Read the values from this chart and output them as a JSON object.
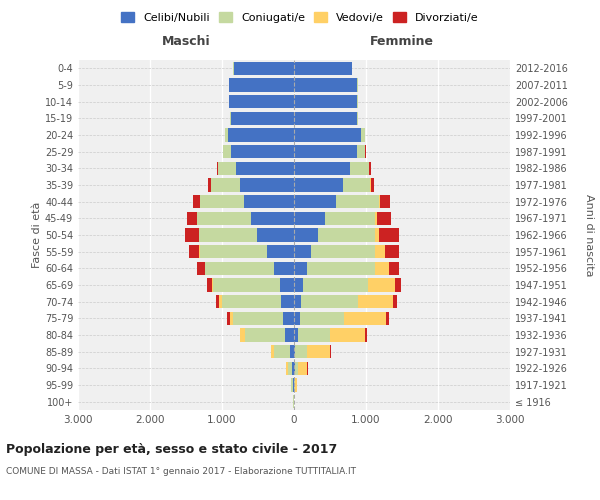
{
  "age_groups": [
    "100+",
    "95-99",
    "90-94",
    "85-89",
    "80-84",
    "75-79",
    "70-74",
    "65-69",
    "60-64",
    "55-59",
    "50-54",
    "45-49",
    "40-44",
    "35-39",
    "30-34",
    "25-29",
    "20-24",
    "15-19",
    "10-14",
    "5-9",
    "0-4"
  ],
  "birth_years": [
    "≤ 1916",
    "1917-1921",
    "1922-1926",
    "1927-1931",
    "1932-1936",
    "1937-1941",
    "1942-1946",
    "1947-1951",
    "1952-1956",
    "1957-1961",
    "1962-1966",
    "1967-1971",
    "1972-1976",
    "1977-1981",
    "1982-1986",
    "1987-1991",
    "1992-1996",
    "1997-2001",
    "2002-2006",
    "2007-2011",
    "2012-2016"
  ],
  "maschi": {
    "celibi": [
      5,
      20,
      30,
      60,
      130,
      150,
      180,
      200,
      280,
      370,
      520,
      600,
      700,
      750,
      800,
      870,
      920,
      870,
      900,
      900,
      840
    ],
    "coniugati": [
      2,
      15,
      60,
      220,
      550,
      700,
      820,
      920,
      950,
      940,
      800,
      750,
      600,
      400,
      250,
      110,
      40,
      15,
      8,
      4,
      3
    ],
    "vedovi": [
      0,
      3,
      15,
      45,
      70,
      45,
      35,
      18,
      8,
      4,
      2,
      1,
      1,
      0,
      0,
      0,
      0,
      0,
      0,
      0,
      0
    ],
    "divorziati": [
      0,
      0,
      0,
      0,
      0,
      40,
      55,
      65,
      110,
      140,
      190,
      140,
      95,
      45,
      25,
      4,
      2,
      0,
      0,
      0,
      0
    ]
  },
  "femmine": {
    "nubili": [
      3,
      5,
      10,
      20,
      55,
      80,
      100,
      130,
      180,
      230,
      330,
      430,
      580,
      680,
      780,
      880,
      930,
      880,
      880,
      880,
      800
    ],
    "coniugate": [
      1,
      12,
      45,
      160,
      450,
      620,
      790,
      900,
      950,
      900,
      800,
      700,
      600,
      380,
      260,
      110,
      50,
      15,
      8,
      4,
      3
    ],
    "vedove": [
      2,
      25,
      130,
      320,
      480,
      580,
      490,
      370,
      190,
      140,
      45,
      25,
      8,
      4,
      2,
      2,
      2,
      0,
      0,
      0,
      0
    ],
    "divorziate": [
      0,
      0,
      4,
      8,
      25,
      45,
      55,
      90,
      140,
      190,
      280,
      190,
      140,
      45,
      25,
      4,
      2,
      0,
      0,
      0,
      0
    ]
  },
  "colors": {
    "celibi": "#4472C4",
    "coniugati": "#C5D9A0",
    "vedovi": "#FFD066",
    "divorziati": "#CC2222"
  },
  "legend_labels": [
    "Celibi/Nubili",
    "Coniugati/e",
    "Vedovi/e",
    "Divorziati/e"
  ],
  "legend_colors": [
    "#4472C4",
    "#C5D9A0",
    "#FFD066",
    "#CC2222"
  ],
  "title": "Popolazione per età, sesso e stato civile - 2017",
  "subtitle": "COMUNE DI MASSA - Dati ISTAT 1° gennaio 2017 - Elaborazione TUTTITALIA.IT",
  "xlabel_left": "Maschi",
  "xlabel_right": "Femmine",
  "ylabel_left": "Fasce di età",
  "ylabel_right": "Anni di nascita",
  "xlim": 3000,
  "bg_color": "#f0f0f0"
}
